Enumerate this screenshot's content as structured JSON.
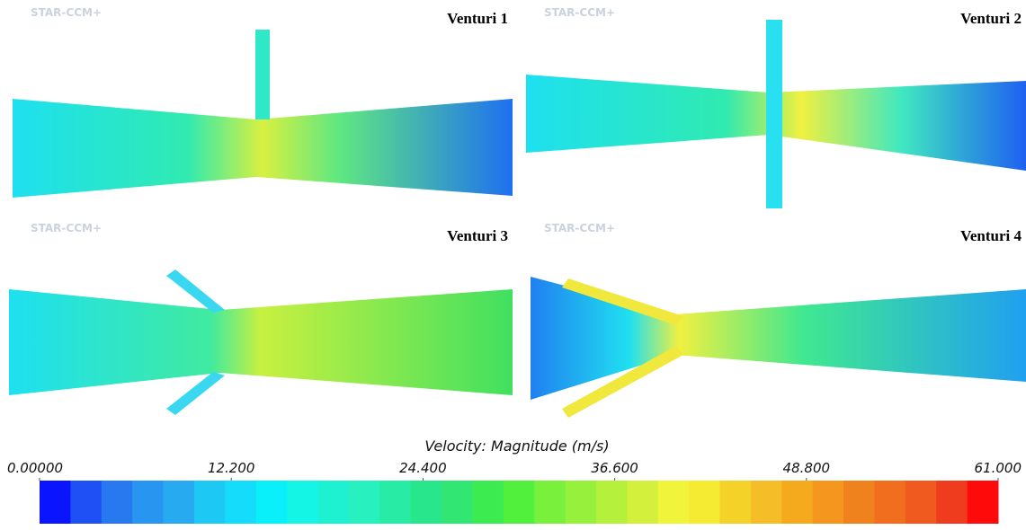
{
  "panels": [
    {
      "title": "Venturi 1",
      "watermark": "STAR-CCM+"
    },
    {
      "title": "Venturi 2",
      "watermark": "STAR-CCM+"
    },
    {
      "title": "Venturi 3",
      "watermark": "STAR-CCM+"
    },
    {
      "title": "Venturi 4",
      "watermark": "STAR-CCM+"
    }
  ],
  "colorbar": {
    "label": "Velocity: Magnitude (m/s)",
    "lim": [
      0,
      61
    ],
    "ticks": [
      {
        "value": 0,
        "label": "0.00000"
      },
      {
        "value": 12.2,
        "label": "12.200"
      },
      {
        "value": 24.4,
        "label": "24.400"
      },
      {
        "value": 36.6,
        "label": "36.600"
      },
      {
        "value": 48.8,
        "label": "48.800"
      },
      {
        "value": 61,
        "label": "61.000"
      }
    ],
    "colors": [
      "#0a14ff",
      "#1e50f5",
      "#2878f0",
      "#2896f0",
      "#28aaf0",
      "#1ec8f5",
      "#14dcfa",
      "#0af0fa",
      "#14f5e6",
      "#1ef0d2",
      "#28f0be",
      "#28eba5",
      "#28e68c",
      "#32e673",
      "#3ceb50",
      "#50f03c",
      "#78f03c",
      "#96f03c",
      "#b4f03c",
      "#d2f03c",
      "#f0f53c",
      "#f5eb32",
      "#f5d228",
      "#f5be28",
      "#f5aa1e",
      "#f5961e",
      "#f0821e",
      "#f06e1e",
      "#f05a1e",
      "#f03c1e",
      "#ff0a0a"
    ]
  }
}
